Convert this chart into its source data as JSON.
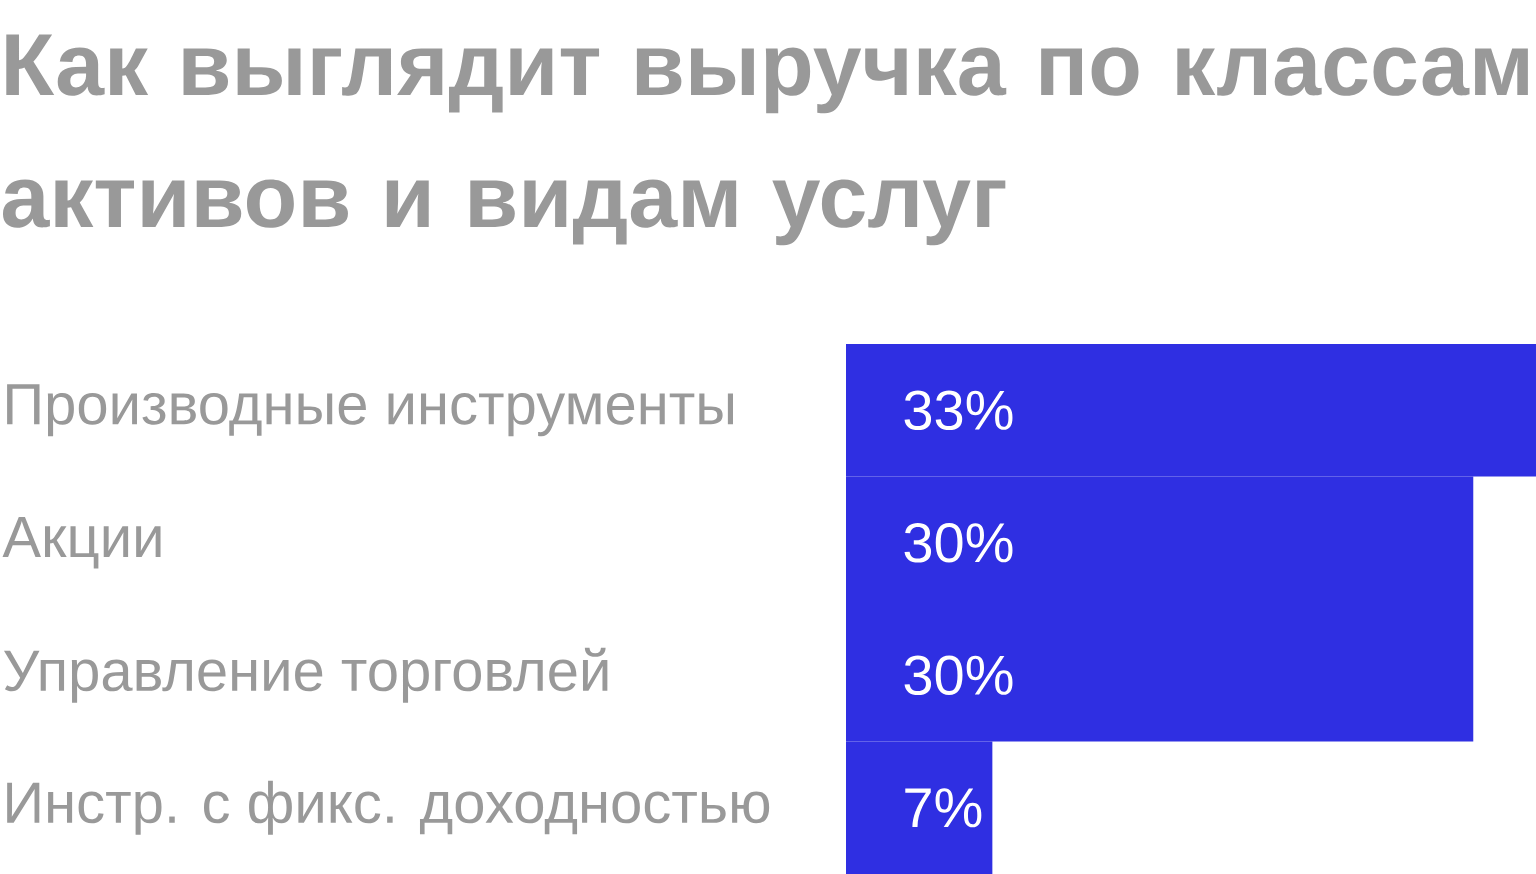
{
  "chart_data": {
    "type": "bar",
    "orientation": "horizontal",
    "title": "Как выглядит выручка по классам активов и видам услуг",
    "categories": [
      "Производные инструменты",
      "Акции",
      "Управление торговлей",
      "Инстр. с фикс. доходностью"
    ],
    "values": [
      33,
      30,
      30,
      7
    ],
    "value_labels": [
      "33%",
      "30%",
      "30%",
      "7%"
    ],
    "color": "#2f2fe2",
    "tick_labels": "y"
  }
}
